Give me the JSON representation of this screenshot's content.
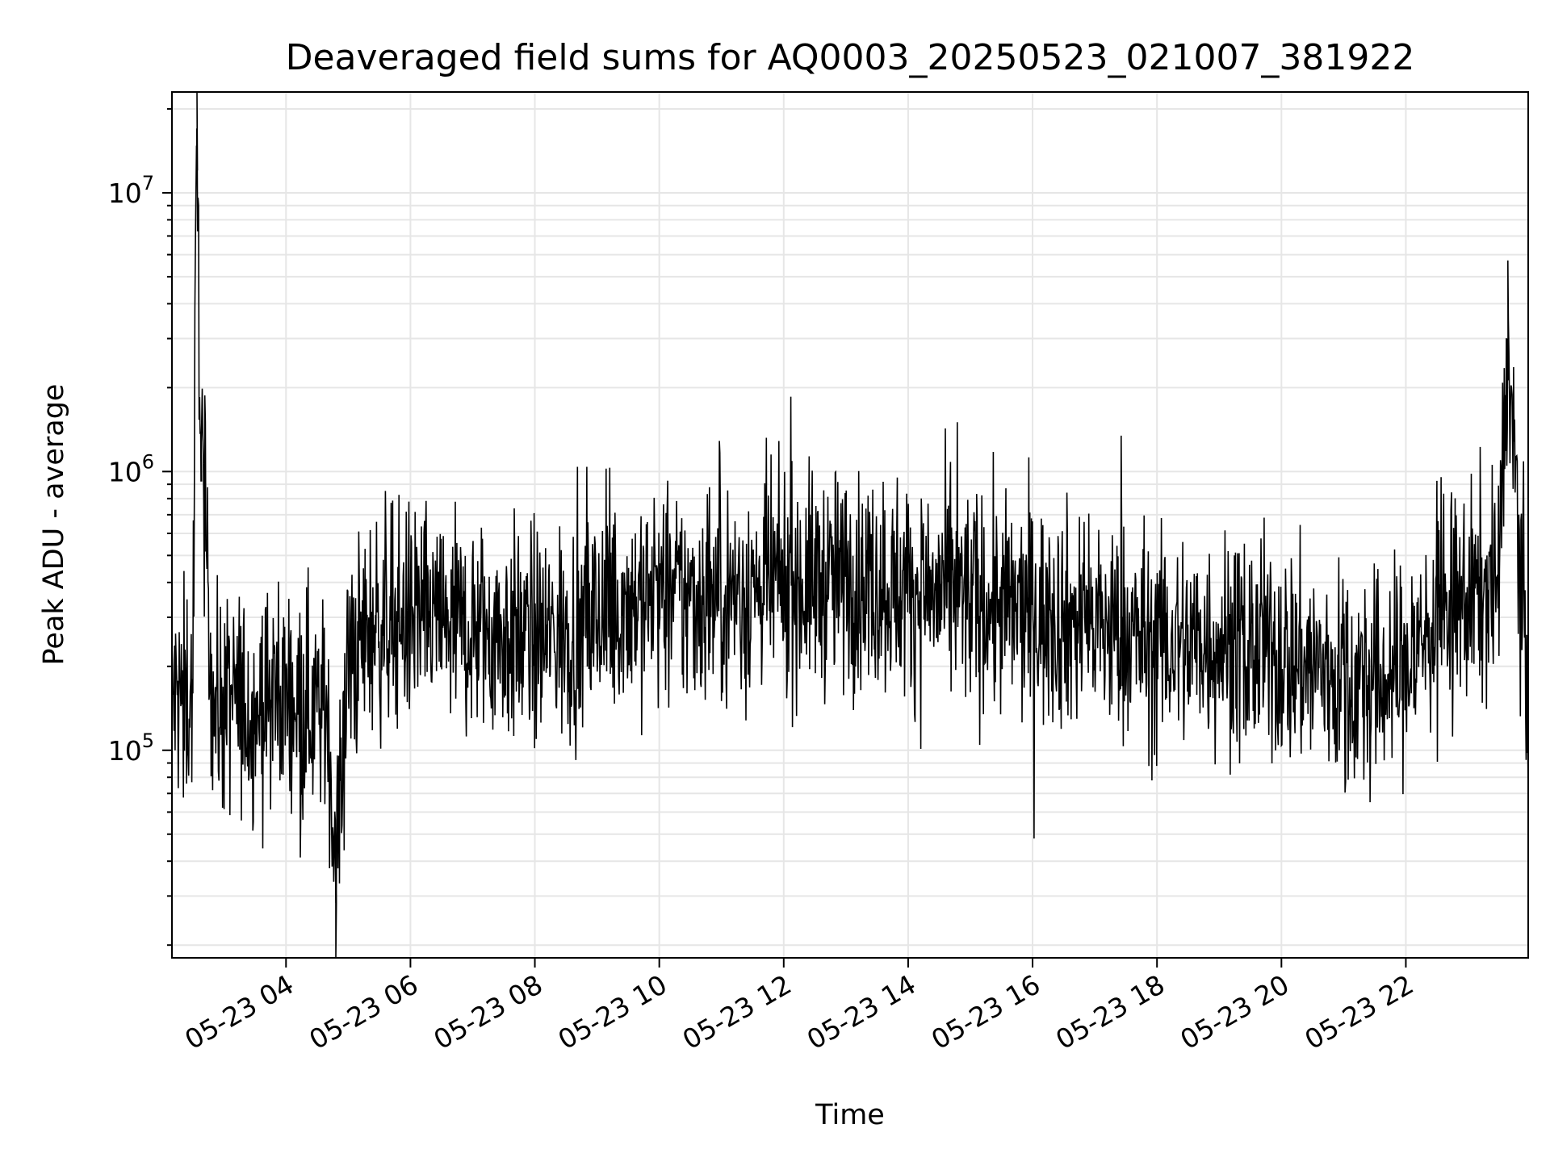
{
  "chart_data": {
    "type": "line",
    "title": "Deaveraged field sums for AQ0003_20250523_021007_381922",
    "xlabel": "Time",
    "ylabel": "Peak ADU - average",
    "yscale": "log",
    "ylim": [
      18000,
      23000000
    ],
    "xlim": [
      "2025-05-23 02:10",
      "2025-05-23 23:58"
    ],
    "x_tick_labels": [
      "05-23 04",
      "05-23 06",
      "05-23 08",
      "05-23 10",
      "05-23 12",
      "05-23 14",
      "05-23 16",
      "05-23 18",
      "05-23 20",
      "05-23 22"
    ],
    "x_tick_times": [
      "2025-05-23 04:00",
      "2025-05-23 06:00",
      "2025-05-23 08:00",
      "2025-05-23 10:00",
      "2025-05-23 12:00",
      "2025-05-23 14:00",
      "2025-05-23 16:00",
      "2025-05-23 18:00",
      "2025-05-23 20:00",
      "2025-05-23 22:00"
    ],
    "y_ticks": [
      {
        "value": 100000,
        "base": "10",
        "exp": "5"
      },
      {
        "value": 1000000,
        "base": "10",
        "exp": "6"
      },
      {
        "value": 10000000,
        "base": "10",
        "exp": "7"
      }
    ],
    "grid": true,
    "line_color": "#000000",
    "grid_color": "#e6e6e6",
    "series": [
      {
        "x": [
          "2025-05-23 02:10",
          "2025-05-23 02:30",
          "2025-05-23 02:34",
          "2025-05-23 02:38",
          "2025-05-23 02:50",
          "2025-05-23 03:10",
          "2025-05-23 03:30",
          "2025-05-23 04:00",
          "2025-05-23 04:20",
          "2025-05-23 04:40",
          "2025-05-23 04:48",
          "2025-05-23 05:00",
          "2025-05-23 05:20",
          "2025-05-23 05:40",
          "2025-05-23 06:00",
          "2025-05-23 06:30",
          "2025-05-23 07:00",
          "2025-05-23 07:30",
          "2025-05-23 08:00",
          "2025-05-23 08:30",
          "2025-05-23 09:00",
          "2025-05-23 09:30",
          "2025-05-23 10:00",
          "2025-05-23 10:30",
          "2025-05-23 11:00",
          "2025-05-23 11:30",
          "2025-05-23 12:00",
          "2025-05-23 12:30",
          "2025-05-23 13:00",
          "2025-05-23 13:30",
          "2025-05-23 14:00",
          "2025-05-23 14:30",
          "2025-05-23 15:00",
          "2025-05-23 15:30",
          "2025-05-23 16:00",
          "2025-05-23 16:30",
          "2025-05-23 17:00",
          "2025-05-23 17:30",
          "2025-05-23 18:00",
          "2025-05-23 18:30",
          "2025-05-23 19:00",
          "2025-05-23 19:30",
          "2025-05-23 20:00",
          "2025-05-23 20:30",
          "2025-05-23 21:00",
          "2025-05-23 21:30",
          "2025-05-23 22:00",
          "2025-05-23 22:30",
          "2025-05-23 23:00",
          "2025-05-23 23:30",
          "2025-05-23 23:38",
          "2025-05-23 23:58"
        ],
        "y": [
          150000,
          160000,
          17000000,
          1300000,
          140000,
          150000,
          140000,
          160000,
          150000,
          130000,
          40000,
          200000,
          270000,
          300000,
          300000,
          290000,
          270000,
          260000,
          250000,
          260000,
          300000,
          340000,
          360000,
          350000,
          360000,
          380000,
          390000,
          400000,
          410000,
          400000,
          380000,
          360000,
          350000,
          320000,
          310000,
          300000,
          280000,
          260000,
          240000,
          240000,
          250000,
          230000,
          220000,
          200000,
          180000,
          170000,
          200000,
          300000,
          350000,
          400000,
          3000000,
          150000
        ]
      }
    ]
  }
}
